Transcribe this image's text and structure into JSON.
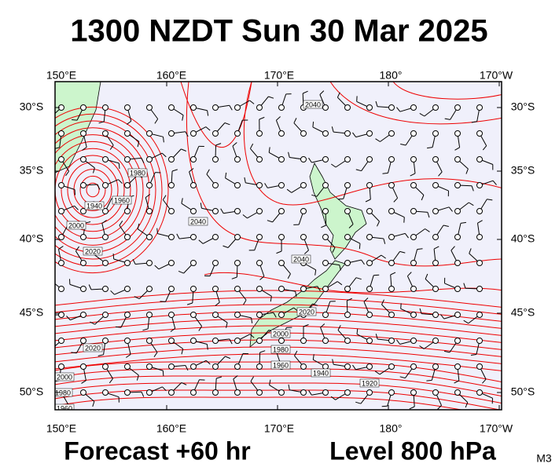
{
  "header": {
    "title": "1300 NZDT Sun 30 Mar 2025"
  },
  "map": {
    "lon_labels": [
      "150°E",
      "160°E",
      "170°E",
      "180°",
      "170°W"
    ],
    "lat_labels": [
      "30°S",
      "35°S",
      "40°S",
      "45°S",
      "50°S"
    ],
    "contour_labels": [
      "2040",
      "1980",
      "1960",
      "1940",
      "2000",
      "2020",
      "2040",
      "2040",
      "2020",
      "2000",
      "1980",
      "1960",
      "1940",
      "1920",
      "2020",
      "2000",
      "1980",
      "1960"
    ]
  },
  "footer": {
    "forecast": "Forecast +60 hr",
    "level": "Level 800 hPa",
    "code": "M3"
  }
}
